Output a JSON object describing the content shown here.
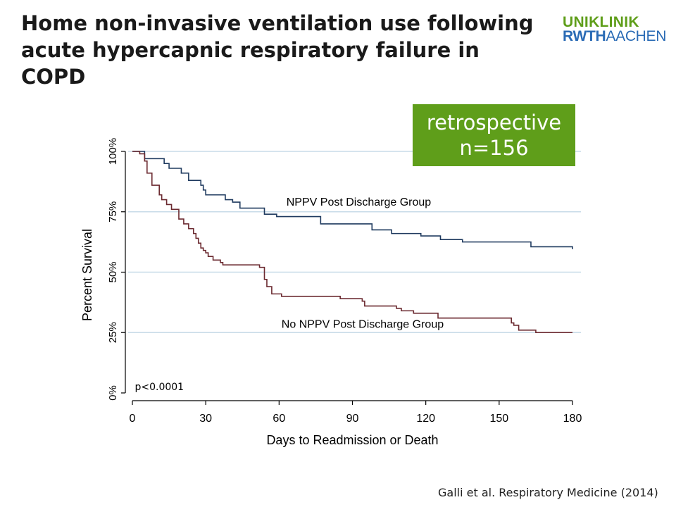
{
  "slide": {
    "title": "Home non-invasive ventilation use following acute hypercapnic respiratory failure in COPD",
    "logo": {
      "line1": "UNIKLINIK",
      "line2_bold": "RWTH",
      "line2_light": "AACHEN",
      "color1": "#5f9e1a",
      "color2": "#2a6bb5"
    },
    "badge": {
      "line1": "retrospective",
      "line2": "n=156",
      "color": "#5f9e1a"
    },
    "citation": "Galli et al. Respiratory Medicine (2014)"
  },
  "chart_data": {
    "type": "line",
    "step": true,
    "xlabel": "Days to Readmission or Death",
    "ylabel": "Percent Survival",
    "xlim": [
      0,
      180
    ],
    "ylim": [
      0,
      100
    ],
    "xticks": [
      0,
      30,
      60,
      90,
      120,
      150,
      180
    ],
    "yticks": [
      0,
      25,
      50,
      75,
      100
    ],
    "xtick_labels": [
      "0",
      "30",
      "60",
      "90",
      "120",
      "150",
      "180"
    ],
    "ytick_labels": [
      "0%",
      "25%",
      "50%",
      "75%",
      "100%"
    ],
    "grid": "horizontal",
    "annotation": "p<0.0001",
    "series": [
      {
        "name": "NPPV Post Discharge Group",
        "color": "#1f3a5f",
        "x": [
          0,
          5,
          13,
          15,
          20,
          23,
          28,
          29,
          30,
          31,
          38,
          41,
          44,
          54,
          59,
          77,
          98,
          106,
          118,
          126,
          135,
          155,
          163,
          180
        ],
        "y": [
          100,
          97,
          95,
          93,
          91,
          88,
          86,
          84,
          82,
          82,
          80,
          79,
          76.5,
          74,
          73,
          70,
          67.5,
          66,
          65,
          63.5,
          62.5,
          62.5,
          60.5,
          59.5
        ]
      },
      {
        "name": "No NPPV Post Discharge Group",
        "color": "#6b2a30",
        "x": [
          0,
          3,
          5,
          6,
          8,
          11,
          12,
          14,
          16,
          19,
          21,
          23,
          25,
          26,
          27,
          28,
          29,
          30,
          31,
          33,
          36,
          37,
          52,
          54,
          55,
          57,
          61,
          85,
          94,
          95,
          108,
          110,
          115,
          125,
          145,
          155,
          156,
          158,
          165,
          180
        ],
        "y": [
          100,
          99,
          96,
          91,
          86,
          82,
          80,
          78,
          76,
          72,
          70,
          68,
          66,
          64,
          62,
          60,
          59,
          58,
          56.5,
          55,
          54,
          53,
          52,
          47,
          44,
          41,
          40,
          39,
          38,
          36,
          35,
          34,
          33,
          31,
          31,
          29,
          28,
          26,
          25,
          25
        ]
      }
    ],
    "series_label_positions": [
      {
        "x": 63,
        "y": 77.5
      },
      {
        "x": 61,
        "y": 27
      }
    ]
  }
}
